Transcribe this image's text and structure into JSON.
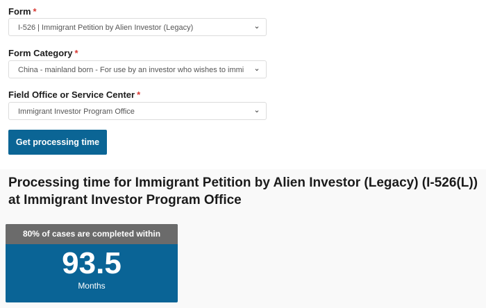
{
  "form": {
    "label": "Form",
    "value": "I-526 | Immigrant Petition by Alien Investor (Legacy)"
  },
  "category": {
    "label": "Form Category",
    "value": "China - mainland born - For use by an investor who wishes to immi"
  },
  "office": {
    "label": "Field Office or Service Center",
    "value": "Immigrant Investor Program Office"
  },
  "required_mark": "*",
  "submit_label": "Get processing time",
  "result": {
    "title": "Processing time for Immigrant Petition by Alien Investor (Legacy) (I-526(L)) at Immigrant Investor Program Office",
    "card_header": "80% of cases are completed within",
    "value": "93.5",
    "unit": "Months"
  },
  "colors": {
    "primary": "#0b6595",
    "required": "#d83933",
    "card_header": "#6b6b6b"
  }
}
